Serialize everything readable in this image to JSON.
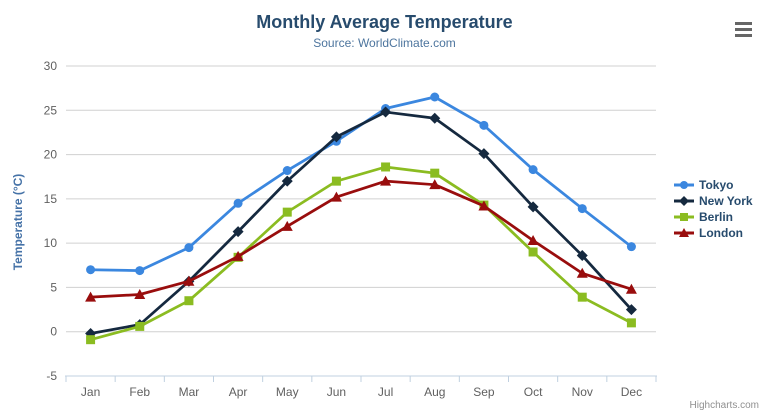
{
  "ui": {
    "burger_icon": "hamburger-menu-icon",
    "credit": "Highcharts.com"
  },
  "chart_data": {
    "type": "line",
    "title": "Monthly Average Temperature",
    "subtitle": "Source: WorldClimate.com",
    "xlabel": "",
    "ylabel": "Temperature (°C)",
    "categories": [
      "Jan",
      "Feb",
      "Mar",
      "Apr",
      "May",
      "Jun",
      "Jul",
      "Aug",
      "Sep",
      "Oct",
      "Nov",
      "Dec"
    ],
    "ylim": [
      -5,
      30
    ],
    "ytick_step": 5,
    "yticks": [
      -5,
      0,
      5,
      10,
      15,
      20,
      25,
      30
    ],
    "grid": true,
    "legend_position": "right",
    "series": [
      {
        "name": "Tokyo",
        "color": "#3b87df",
        "marker": "circle",
        "values": [
          7.0,
          6.9,
          9.5,
          14.5,
          18.2,
          21.5,
          25.2,
          26.5,
          23.3,
          18.3,
          13.9,
          9.6
        ]
      },
      {
        "name": "New York",
        "color": "#15293f",
        "marker": "diamond",
        "values": [
          -0.2,
          0.8,
          5.7,
          11.3,
          17.0,
          22.0,
          24.8,
          24.1,
          20.1,
          14.1,
          8.6,
          2.5
        ]
      },
      {
        "name": "Berlin",
        "color": "#8bbc21",
        "marker": "square",
        "values": [
          -0.9,
          0.6,
          3.5,
          8.4,
          13.5,
          17.0,
          18.6,
          17.9,
          14.3,
          9.0,
          3.9,
          1.0
        ]
      },
      {
        "name": "London",
        "color": "#990d0d",
        "marker": "triangle",
        "values": [
          3.9,
          4.2,
          5.7,
          8.5,
          11.9,
          15.2,
          17.0,
          16.6,
          14.2,
          10.3,
          6.6,
          4.8
        ]
      }
    ],
    "axis_colors": {
      "grid_line": "#d0d0d0",
      "axis_line": "#c0d0e0",
      "tick": "#c0d0e0",
      "label": "#606060"
    }
  }
}
